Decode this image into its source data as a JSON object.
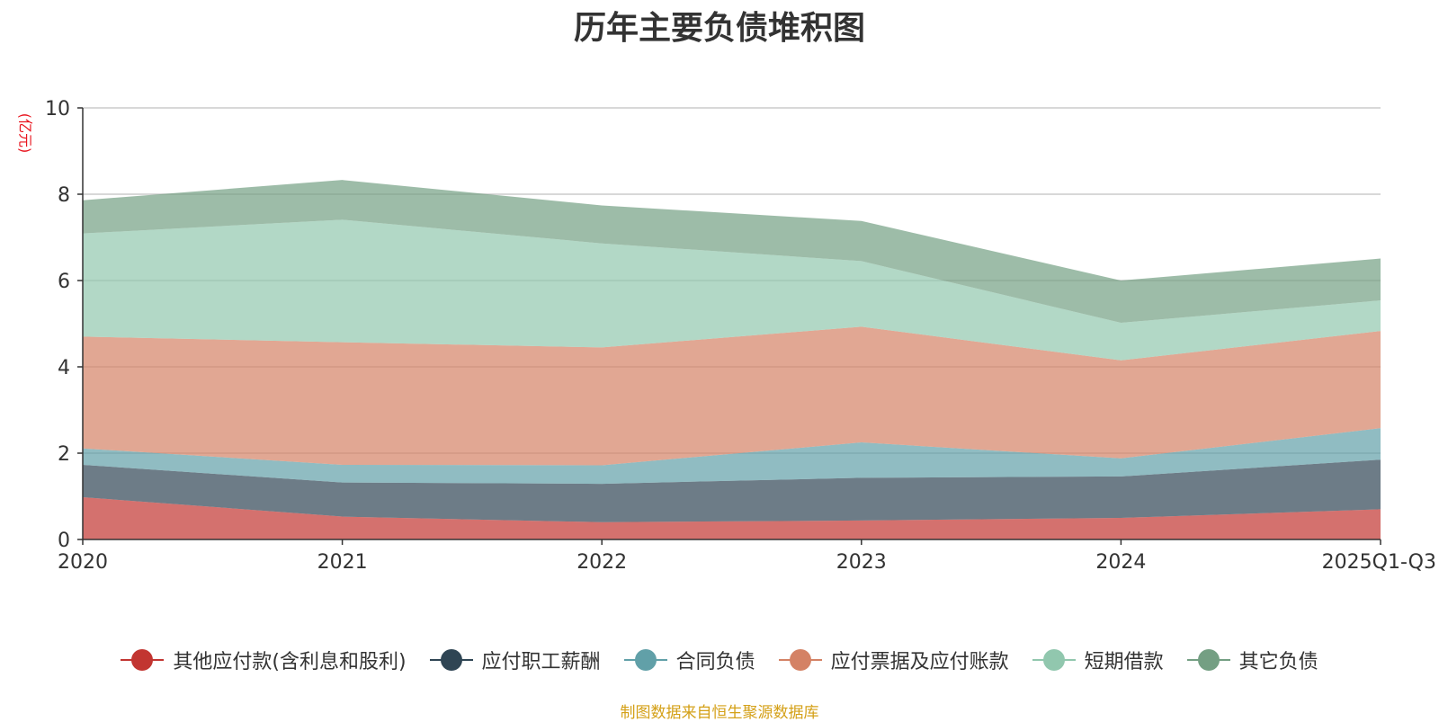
{
  "chart_data": {
    "type": "area",
    "stacked": true,
    "title": "历年主要负债堆积图",
    "ylabel": "(亿元)",
    "xlabel": "",
    "categories": [
      "2020",
      "2021",
      "2022",
      "2023",
      "2024",
      "2025Q1-Q3"
    ],
    "ylim": [
      0,
      10
    ],
    "yticks": [
      0,
      2,
      4,
      6,
      8,
      10
    ],
    "grid": true,
    "legend_position": "bottom",
    "series": [
      {
        "name": "其他应付款(含利息和股利)",
        "color": "#c23531",
        "values": [
          0.98,
          0.53,
          0.4,
          0.44,
          0.5,
          0.7
        ]
      },
      {
        "name": "应付职工薪酬",
        "color": "#2f4554",
        "values": [
          0.75,
          0.79,
          0.89,
          0.99,
          0.96,
          1.15
        ]
      },
      {
        "name": "合同负债",
        "color": "#61a0a8",
        "values": [
          0.38,
          0.41,
          0.43,
          0.82,
          0.42,
          0.73
        ]
      },
      {
        "name": "应付票据及应付账款",
        "color": "#d48265",
        "values": [
          2.59,
          2.84,
          2.73,
          2.68,
          2.27,
          2.25
        ]
      },
      {
        "name": "短期借款",
        "color": "#91c7ae",
        "values": [
          2.39,
          2.84,
          2.41,
          1.52,
          0.87,
          0.71
        ]
      },
      {
        "name": "其它负债",
        "color": "#749f83",
        "values": [
          0.77,
          0.92,
          0.88,
          0.93,
          0.98,
          0.97
        ]
      }
    ]
  },
  "source_note": "制图数据来自恒生聚源数据库"
}
